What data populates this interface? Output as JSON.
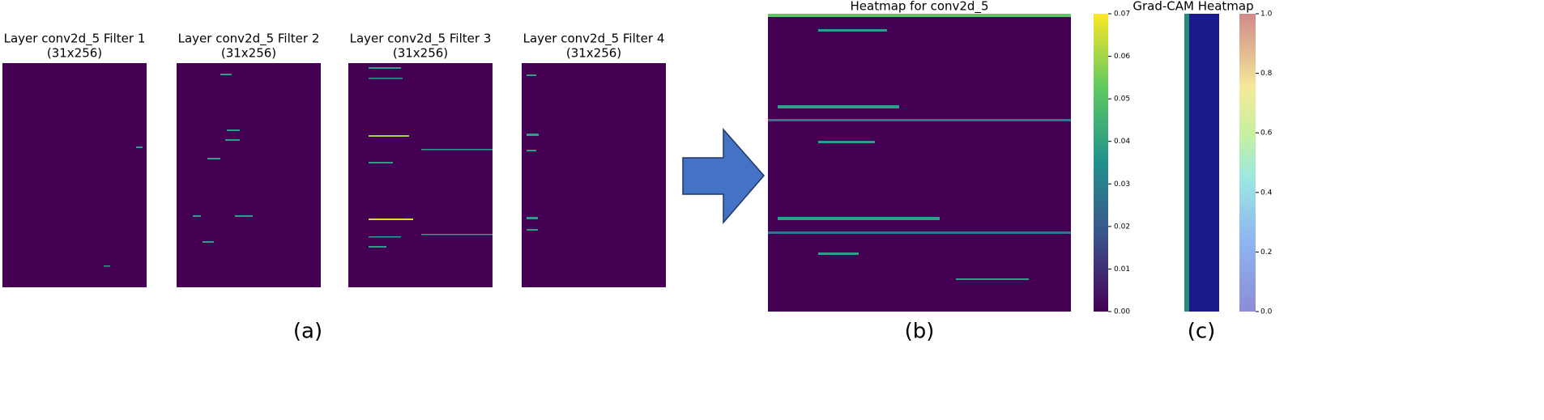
{
  "panel_a": {
    "filters": [
      {
        "title": "Layer conv2d_5 Filter 1",
        "size": "(31x256)"
      },
      {
        "title": "Layer conv2d_5 Filter 2",
        "size": "(31x256)"
      },
      {
        "title": "Layer conv2d_5 Filter 3",
        "size": "(31x256)"
      },
      {
        "title": "Layer conv2d_5 Filter 4",
        "size": "(31x256)"
      }
    ],
    "label": "(a)"
  },
  "panel_b": {
    "title": "Heatmap for conv2d_5",
    "colorbar_ticks": [
      "0.00",
      "0.01",
      "0.02",
      "0.03",
      "0.04",
      "0.05",
      "0.06",
      "0.07"
    ],
    "label": "(b)"
  },
  "panel_c": {
    "title": "Grad-CAM Heatmap",
    "colorbar_ticks": [
      "0.0",
      "0.2",
      "0.4",
      "0.6",
      "0.8",
      "1.0"
    ],
    "label": "(c)"
  }
}
